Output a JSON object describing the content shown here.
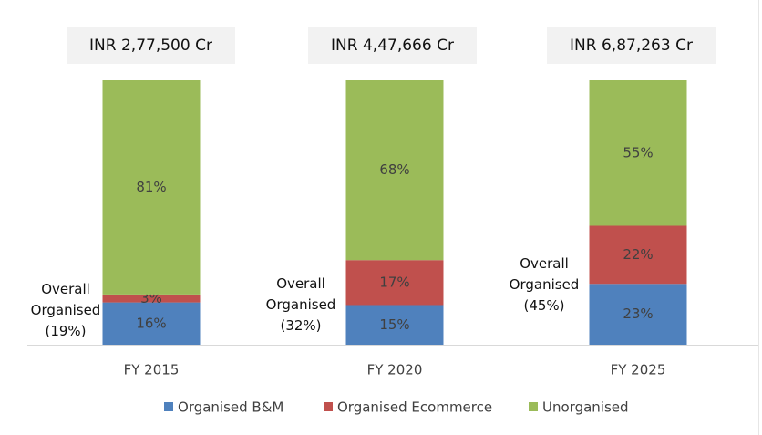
{
  "chart_data": {
    "type": "stacked_bar",
    "categories": [
      "FY 2015",
      "FY 2020",
      "FY 2025"
    ],
    "series": [
      {
        "name": "Organised B&M",
        "color": "#4f81bd",
        "values": [
          16,
          15,
          23
        ],
        "value_labels": [
          "16%",
          "15%",
          "23%"
        ]
      },
      {
        "name": "Organised Ecommerce",
        "color": "#c0504d",
        "values": [
          3,
          17,
          22
        ],
        "value_labels": [
          "3%",
          "17%",
          "22%"
        ]
      },
      {
        "name": "Unorganised",
        "color": "#9bbb59",
        "values": [
          81,
          68,
          55
        ],
        "value_labels": [
          "81%",
          "68%",
          "55%"
        ]
      }
    ],
    "ylim": [
      0,
      100
    ],
    "annotations": {
      "totals": [
        "INR 2,77,500 Cr",
        "INR 4,47,666 Cr",
        "INR 6,87,263 Cr"
      ],
      "organised": [
        "Overall Organised (19%)",
        "Overall Organised (32%)",
        "Overall Organised (45%)"
      ]
    },
    "legend": "bottom"
  }
}
